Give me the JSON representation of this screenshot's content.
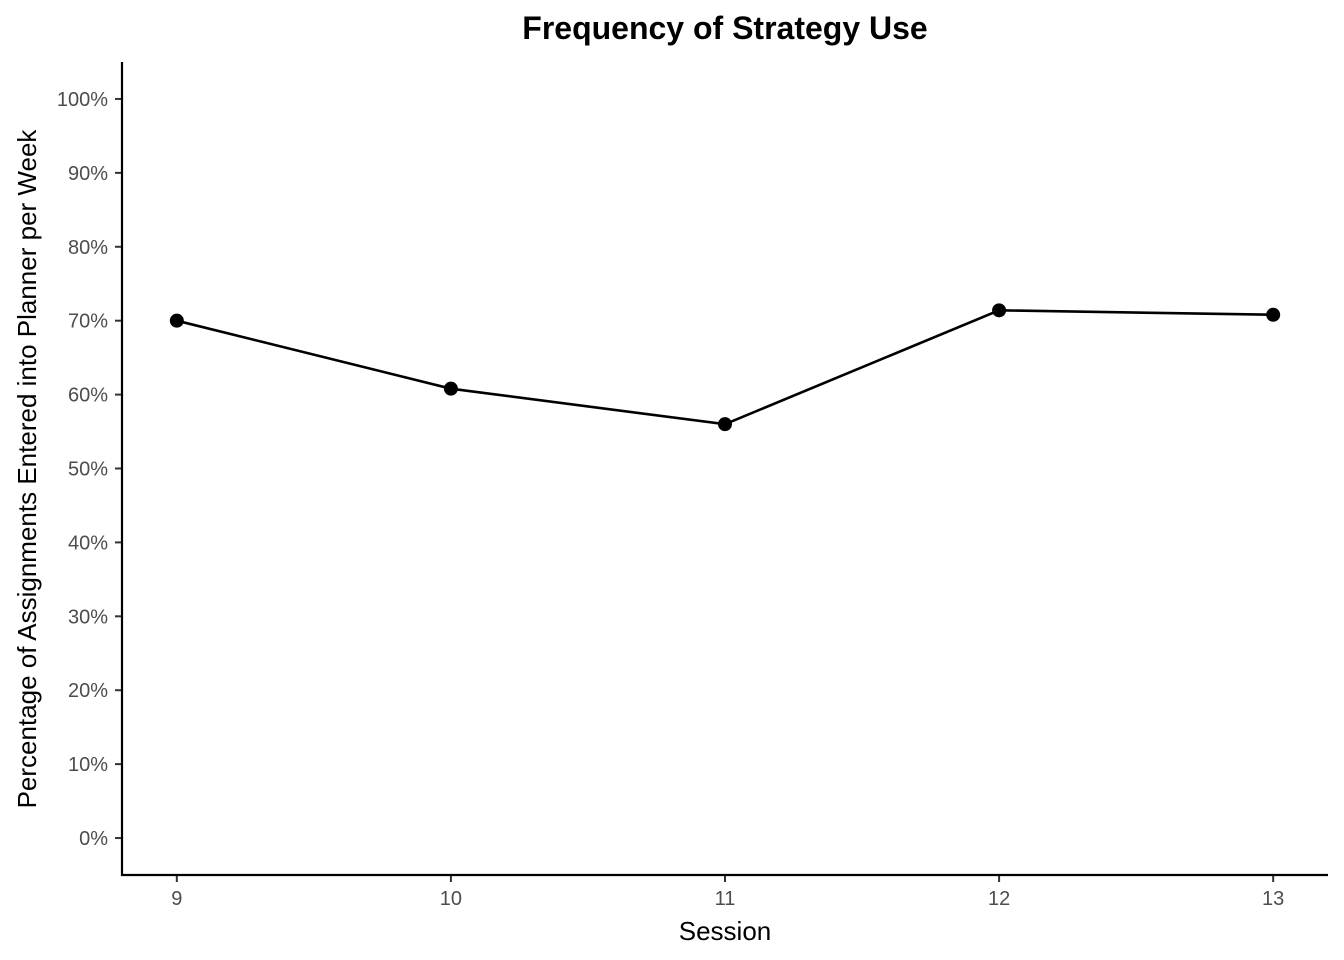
{
  "chart_data": {
    "type": "line",
    "title": "Frequency of Strategy Use",
    "xlabel": "Session",
    "ylabel": "Percentage of Assignments Entered into Planner per Week",
    "x": [
      9,
      10,
      11,
      12,
      13
    ],
    "x_tick_labels": [
      "9",
      "10",
      "11",
      "12",
      "13"
    ],
    "xlim": [
      8.8,
      13.2
    ],
    "series": [
      {
        "values": [
          0.7,
          0.608,
          0.56,
          0.714,
          0.708
        ]
      }
    ],
    "y_ticks": [
      0,
      0.1,
      0.2,
      0.3,
      0.4,
      0.5,
      0.6,
      0.7,
      0.8,
      0.9,
      1.0
    ],
    "y_tick_labels": [
      "0%",
      "10%",
      "20%",
      "30%",
      "40%",
      "50%",
      "60%",
      "70%",
      "80%",
      "90%",
      "100%"
    ],
    "ylim": [
      -0.05,
      1.05
    ],
    "grid": false,
    "legend": "none",
    "colors": {
      "line": "#000000",
      "points": "#000000",
      "tick_labels": "#4d4d4d"
    }
  }
}
